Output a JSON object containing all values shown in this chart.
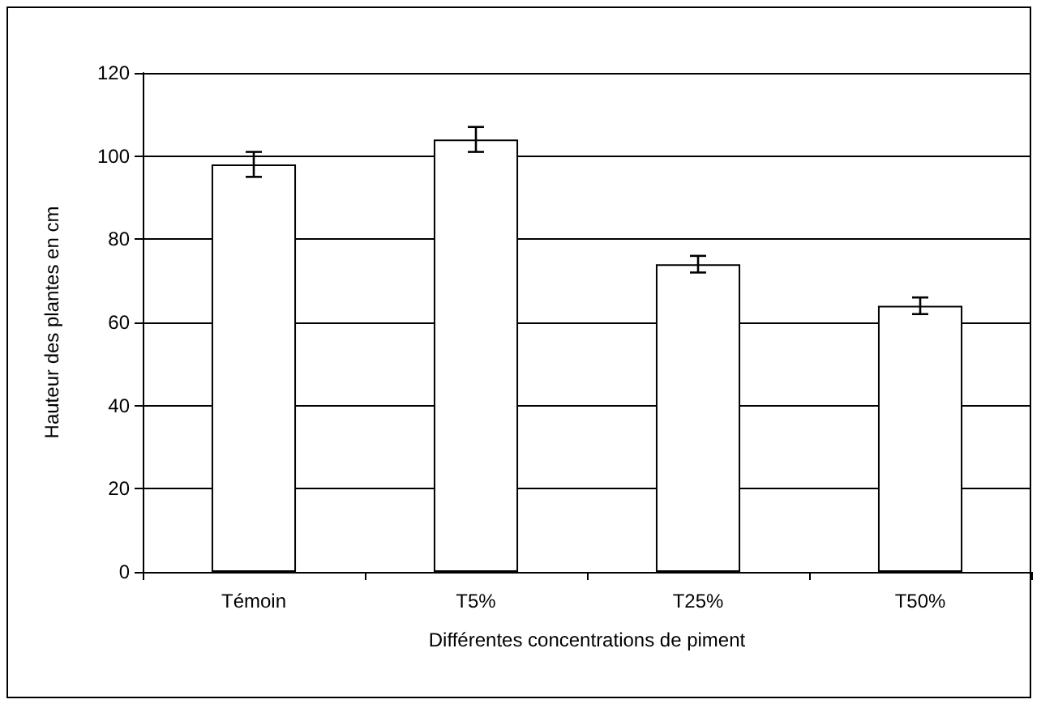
{
  "chart_data": {
    "type": "bar",
    "xlabel": "Différentes concentrations de piment",
    "ylabel": "Hauteur des plantes en cm",
    "categories": [
      "Témoin",
      "T5%",
      "T25%",
      "T50%"
    ],
    "values": [
      98,
      104,
      74,
      64
    ],
    "errors": [
      3,
      3,
      2,
      2
    ],
    "color": "#ffffff",
    "ylim": [
      0,
      120
    ],
    "yticks": [
      0,
      20,
      40,
      60,
      80,
      100,
      120
    ],
    "grid": "y"
  }
}
